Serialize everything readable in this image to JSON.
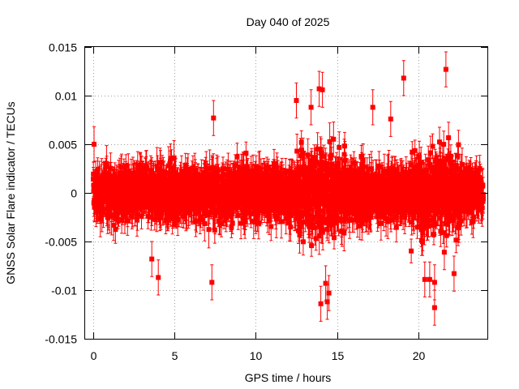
{
  "chart_data": {
    "type": "scatter",
    "title": "Day 040 of 2025",
    "xlabel": "GPS time / hours",
    "ylabel": "GNSS Solar Flare indicator / TECUs",
    "xlim": [
      -0.5,
      24.25
    ],
    "ylim": [
      -0.015,
      0.015
    ],
    "xticks": [
      0,
      5,
      10,
      15,
      20
    ],
    "xtick_labels": [
      "0",
      "5",
      "10",
      "15",
      "20"
    ],
    "yticks": [
      -0.015,
      -0.01,
      -0.005,
      0,
      0.005,
      0.01,
      0.015
    ],
    "ytick_labels": [
      "-0.015",
      "-0.01",
      "-0.005",
      "0",
      "0.005",
      "0.01",
      "0.015"
    ],
    "grid": true,
    "series": [
      {
        "color": "#ff0000",
        "marker": "square",
        "error_bars": true,
        "x_range": [
          0,
          24
        ],
        "points_per_hour": 120,
        "typical_error": 0.0015,
        "outliers": [
          {
            "x": 0.05,
            "y": 0.005
          },
          {
            "x": 3.6,
            "y": -0.0068
          },
          {
            "x": 4.0,
            "y": -0.0087
          },
          {
            "x": 7.3,
            "y": -0.0092
          },
          {
            "x": 7.4,
            "y": 0.0077
          },
          {
            "x": 12.5,
            "y": 0.0095
          },
          {
            "x": 13.4,
            "y": 0.0088
          },
          {
            "x": 13.9,
            "y": 0.0107
          },
          {
            "x": 14.1,
            "y": 0.0106
          },
          {
            "x": 14.0,
            "y": -0.0114
          },
          {
            "x": 14.4,
            "y": -0.0112
          },
          {
            "x": 14.5,
            "y": -0.0103
          },
          {
            "x": 14.3,
            "y": -0.0093
          },
          {
            "x": 17.2,
            "y": 0.0088
          },
          {
            "x": 18.3,
            "y": 0.0076
          },
          {
            "x": 19.1,
            "y": 0.0118
          },
          {
            "x": 20.4,
            "y": -0.0089
          },
          {
            "x": 20.7,
            "y": -0.0089
          },
          {
            "x": 21.0,
            "y": -0.0118
          },
          {
            "x": 21.0,
            "y": -0.0092
          },
          {
            "x": 21.7,
            "y": 0.0127
          },
          {
            "x": 21.6,
            "y": -0.0061
          },
          {
            "x": 22.2,
            "y": -0.0083
          }
        ]
      }
    ]
  }
}
